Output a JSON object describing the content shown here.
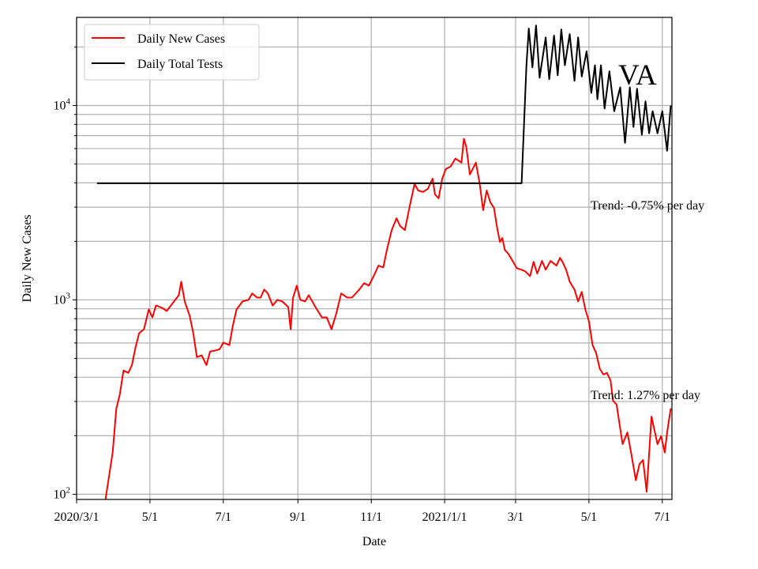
{
  "chart_data": {
    "type": "line",
    "title": "",
    "xlabel": "Date",
    "ylabel": "Daily New Cases",
    "yscale": "log",
    "xlim": [
      "2020-03-01",
      "2021-07-09"
    ],
    "ylim": [
      94,
      28400
    ],
    "grid": true,
    "legend_position": "top-left",
    "x_tick_labels": [
      {
        "date": "2020-03-01",
        "label": "2020/3/1"
      },
      {
        "date": "2020-05-01",
        "label": "5/1"
      },
      {
        "date": "2020-07-01",
        "label": "7/1"
      },
      {
        "date": "2020-09-01",
        "label": "9/1"
      },
      {
        "date": "2020-11-01",
        "label": "11/1"
      },
      {
        "date": "2021-01-01",
        "label": "2021/1/1"
      },
      {
        "date": "2021-03-01",
        "label": "3/1"
      },
      {
        "date": "2021-05-01",
        "label": "5/1"
      },
      {
        "date": "2021-07-01",
        "label": "7/1"
      }
    ],
    "y_tick_labels": [
      {
        "value": 100,
        "base": "10",
        "exp": "2"
      },
      {
        "value": 1000,
        "base": "10",
        "exp": "3"
      },
      {
        "value": 10000,
        "base": "10",
        "exp": "4"
      }
    ],
    "annotations": {
      "state": "VA",
      "trend_tests": "Trend: -0.75% per day",
      "trend_cases": "Trend: 1.27% per day"
    },
    "series": [
      {
        "name": "Daily New Cases",
        "color": "#ff0000",
        "points": [
          [
            "2020-03-25",
            94
          ],
          [
            "2020-03-28",
            124
          ],
          [
            "2020-03-31",
            164
          ],
          [
            "2020-04-03",
            275
          ],
          [
            "2020-04-06",
            327
          ],
          [
            "2020-04-09",
            433
          ],
          [
            "2020-04-13",
            421
          ],
          [
            "2020-04-16",
            462
          ],
          [
            "2020-04-19",
            569
          ],
          [
            "2020-04-22",
            674
          ],
          [
            "2020-04-26",
            706
          ],
          [
            "2020-04-30",
            893
          ],
          [
            "2020-05-03",
            813
          ],
          [
            "2020-05-06",
            935
          ],
          [
            "2020-05-11",
            910
          ],
          [
            "2020-05-15",
            877
          ],
          [
            "2020-05-21",
            982
          ],
          [
            "2020-05-25",
            1057
          ],
          [
            "2020-05-27",
            1241
          ],
          [
            "2020-05-30",
            977
          ],
          [
            "2020-06-03",
            828
          ],
          [
            "2020-06-06",
            674
          ],
          [
            "2020-06-09",
            508
          ],
          [
            "2020-06-13",
            518
          ],
          [
            "2020-06-17",
            462
          ],
          [
            "2020-06-20",
            543
          ],
          [
            "2020-06-24",
            548
          ],
          [
            "2020-06-28",
            558
          ],
          [
            "2020-07-01",
            603
          ],
          [
            "2020-07-06",
            585
          ],
          [
            "2020-07-09",
            740
          ],
          [
            "2020-07-12",
            893
          ],
          [
            "2020-07-17",
            982
          ],
          [
            "2020-07-22",
            1000
          ],
          [
            "2020-07-25",
            1079
          ],
          [
            "2020-07-29",
            1028
          ],
          [
            "2020-08-01",
            1028
          ],
          [
            "2020-08-04",
            1130
          ],
          [
            "2020-08-07",
            1079
          ],
          [
            "2020-08-11",
            935
          ],
          [
            "2020-08-15",
            1000
          ],
          [
            "2020-08-19",
            982
          ],
          [
            "2020-08-24",
            918
          ],
          [
            "2020-08-26",
            706
          ],
          [
            "2020-08-28",
            1028
          ],
          [
            "2020-08-31",
            1183
          ],
          [
            "2020-09-03",
            1000
          ],
          [
            "2020-09-07",
            982
          ],
          [
            "2020-09-10",
            1057
          ],
          [
            "2020-09-16",
            910
          ],
          [
            "2020-09-21",
            813
          ],
          [
            "2020-09-25",
            813
          ],
          [
            "2020-09-29",
            706
          ],
          [
            "2020-10-03",
            853
          ],
          [
            "2020-10-07",
            1079
          ],
          [
            "2020-10-12",
            1028
          ],
          [
            "2020-10-16",
            1028
          ],
          [
            "2020-10-22",
            1130
          ],
          [
            "2020-10-26",
            1219
          ],
          [
            "2020-10-30",
            1183
          ],
          [
            "2020-11-04",
            1365
          ],
          [
            "2020-11-07",
            1500
          ],
          [
            "2020-11-11",
            1469
          ],
          [
            "2020-11-14",
            1807
          ],
          [
            "2020-11-18",
            2286
          ],
          [
            "2020-11-22",
            2630
          ],
          [
            "2020-11-25",
            2399
          ],
          [
            "2020-11-29",
            2286
          ],
          [
            "2020-12-03",
            3034
          ],
          [
            "2020-12-07",
            3945
          ],
          [
            "2020-12-10",
            3656
          ],
          [
            "2020-12-14",
            3589
          ],
          [
            "2020-12-18",
            3724
          ],
          [
            "2020-12-22",
            4207
          ],
          [
            "2020-12-24",
            3491
          ],
          [
            "2020-12-27",
            3327
          ],
          [
            "2020-12-30",
            4207
          ],
          [
            "2021-01-02",
            4710
          ],
          [
            "2021-01-06",
            4853
          ],
          [
            "2021-01-10",
            5333
          ],
          [
            "2021-01-15",
            5082
          ],
          [
            "2021-01-17",
            6745
          ],
          [
            "2021-01-19",
            6138
          ],
          [
            "2021-01-22",
            4416
          ],
          [
            "2021-01-27",
            5082
          ],
          [
            "2021-01-30",
            4018
          ],
          [
            "2021-02-02",
            2891
          ],
          [
            "2021-02-05",
            3656
          ],
          [
            "2021-02-08",
            3177
          ],
          [
            "2021-02-11",
            2972
          ],
          [
            "2021-02-14",
            2286
          ],
          [
            "2021-02-16",
            1986
          ],
          [
            "2021-02-18",
            2080
          ],
          [
            "2021-02-20",
            1807
          ],
          [
            "2021-02-23",
            1726
          ],
          [
            "2021-02-27",
            1570
          ],
          [
            "2021-03-02",
            1455
          ],
          [
            "2021-03-06",
            1429
          ],
          [
            "2021-03-09",
            1403
          ],
          [
            "2021-03-13",
            1325
          ],
          [
            "2021-03-16",
            1570
          ],
          [
            "2021-03-19",
            1365
          ],
          [
            "2021-03-23",
            1585
          ],
          [
            "2021-03-26",
            1429
          ],
          [
            "2021-03-30",
            1585
          ],
          [
            "2021-04-04",
            1500
          ],
          [
            "2021-04-07",
            1644
          ],
          [
            "2021-04-09",
            1570
          ],
          [
            "2021-04-12",
            1429
          ],
          [
            "2021-04-15",
            1242
          ],
          [
            "2021-04-19",
            1130
          ],
          [
            "2021-04-22",
            982
          ],
          [
            "2021-04-25",
            1099
          ],
          [
            "2021-04-28",
            893
          ],
          [
            "2021-05-01",
            776
          ],
          [
            "2021-05-04",
            585
          ],
          [
            "2021-05-07",
            533
          ],
          [
            "2021-05-10",
            442
          ],
          [
            "2021-05-13",
            413
          ],
          [
            "2021-05-16",
            421
          ],
          [
            "2021-05-19",
            384
          ],
          [
            "2021-05-21",
            303
          ],
          [
            "2021-05-24",
            289
          ],
          [
            "2021-05-29",
            181
          ],
          [
            "2021-06-02",
            208
          ],
          [
            "2021-06-05",
            164
          ],
          [
            "2021-06-09",
            118
          ],
          [
            "2021-06-12",
            143
          ],
          [
            "2021-06-15",
            150
          ],
          [
            "2021-06-18",
            103
          ],
          [
            "2021-06-22",
            251
          ],
          [
            "2021-06-27",
            181
          ],
          [
            "2021-06-30",
            199
          ],
          [
            "2021-07-03",
            164
          ],
          [
            "2021-07-05",
            208
          ],
          [
            "2021-07-08",
            276
          ]
        ]
      },
      {
        "name": "Daily Total Tests",
        "color": "#000000",
        "points": [
          [
            "2020-03-18",
            3981
          ],
          [
            "2021-03-06",
            3981
          ],
          [
            "2021-03-10",
            16000
          ],
          [
            "2021-03-12",
            24900
          ],
          [
            "2021-03-15",
            15700
          ],
          [
            "2021-03-18",
            25800
          ],
          [
            "2021-03-21",
            13900
          ],
          [
            "2021-03-26",
            22400
          ],
          [
            "2021-03-29",
            13650
          ],
          [
            "2021-04-02",
            22900
          ],
          [
            "2021-04-05",
            14300
          ],
          [
            "2021-04-08",
            24600
          ],
          [
            "2021-04-11",
            16100
          ],
          [
            "2021-04-15",
            23300
          ],
          [
            "2021-04-19",
            13400
          ],
          [
            "2021-04-22",
            22400
          ],
          [
            "2021-04-25",
            14100
          ],
          [
            "2021-04-29",
            19000
          ],
          [
            "2021-05-03",
            11620
          ],
          [
            "2021-05-06",
            16100
          ],
          [
            "2021-05-08",
            10780
          ],
          [
            "2021-05-11",
            16100
          ],
          [
            "2021-05-14",
            9640
          ],
          [
            "2021-05-18",
            15000
          ],
          [
            "2021-05-22",
            9350
          ],
          [
            "2021-05-27",
            12400
          ],
          [
            "2021-05-31",
            6420
          ],
          [
            "2021-06-04",
            12400
          ],
          [
            "2021-06-07",
            7760
          ],
          [
            "2021-06-10",
            12200
          ],
          [
            "2021-06-14",
            7070
          ],
          [
            "2021-06-17",
            10500
          ],
          [
            "2021-06-20",
            7200
          ],
          [
            "2021-06-23",
            9350
          ],
          [
            "2021-06-27",
            7200
          ],
          [
            "2021-07-01",
            9350
          ],
          [
            "2021-07-05",
            5850
          ],
          [
            "2021-07-08",
            10000
          ]
        ]
      }
    ]
  }
}
